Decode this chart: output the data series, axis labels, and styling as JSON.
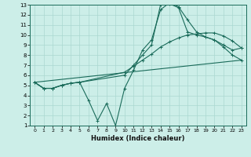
{
  "xlabel": "Humidex (Indice chaleur)",
  "background_color": "#cceee8",
  "grid_color": "#aad8d0",
  "line_color": "#1a6b5a",
  "xlim": [
    -0.5,
    23.5
  ],
  "ylim": [
    1,
    13
  ],
  "xticks": [
    0,
    1,
    2,
    3,
    4,
    5,
    6,
    7,
    8,
    9,
    10,
    11,
    12,
    13,
    14,
    15,
    16,
    17,
    18,
    19,
    20,
    21,
    22,
    23
  ],
  "yticks": [
    1,
    2,
    3,
    4,
    5,
    6,
    7,
    8,
    9,
    10,
    11,
    12,
    13
  ],
  "line1_x": [
    0,
    1,
    2,
    3,
    4,
    5,
    10,
    11,
    12,
    13,
    14,
    15,
    16,
    17,
    18,
    19,
    20,
    21,
    22,
    23
  ],
  "line1_y": [
    5.3,
    4.7,
    4.7,
    5.0,
    5.2,
    5.3,
    6.3,
    6.9,
    7.5,
    8.1,
    8.8,
    9.3,
    9.7,
    10.0,
    10.1,
    10.2,
    10.2,
    9.9,
    9.4,
    8.7
  ],
  "line2_x": [
    0,
    1,
    2,
    3,
    4,
    5,
    6,
    7,
    8,
    9,
    10,
    11,
    12,
    13,
    14,
    15,
    16,
    17,
    18,
    19,
    20,
    21,
    22,
    23
  ],
  "line2_y": [
    5.3,
    4.7,
    4.7,
    5.0,
    5.2,
    5.3,
    3.5,
    1.5,
    3.2,
    1.0,
    4.7,
    6.5,
    8.5,
    9.5,
    12.5,
    13.2,
    12.8,
    11.5,
    10.3,
    9.8,
    9.5,
    8.8,
    8.0,
    7.5
  ],
  "line3_x": [
    0,
    1,
    2,
    3,
    4,
    5,
    10,
    11,
    12,
    13,
    14,
    15,
    16,
    17,
    18,
    19,
    20,
    21,
    22,
    23
  ],
  "line3_y": [
    5.3,
    4.7,
    4.7,
    5.0,
    5.2,
    5.3,
    6.0,
    7.0,
    8.0,
    9.0,
    13.0,
    13.1,
    12.7,
    10.3,
    10.0,
    9.8,
    9.5,
    9.0,
    8.5,
    8.7
  ],
  "line4_x": [
    0,
    23
  ],
  "line4_y": [
    5.3,
    7.5
  ]
}
